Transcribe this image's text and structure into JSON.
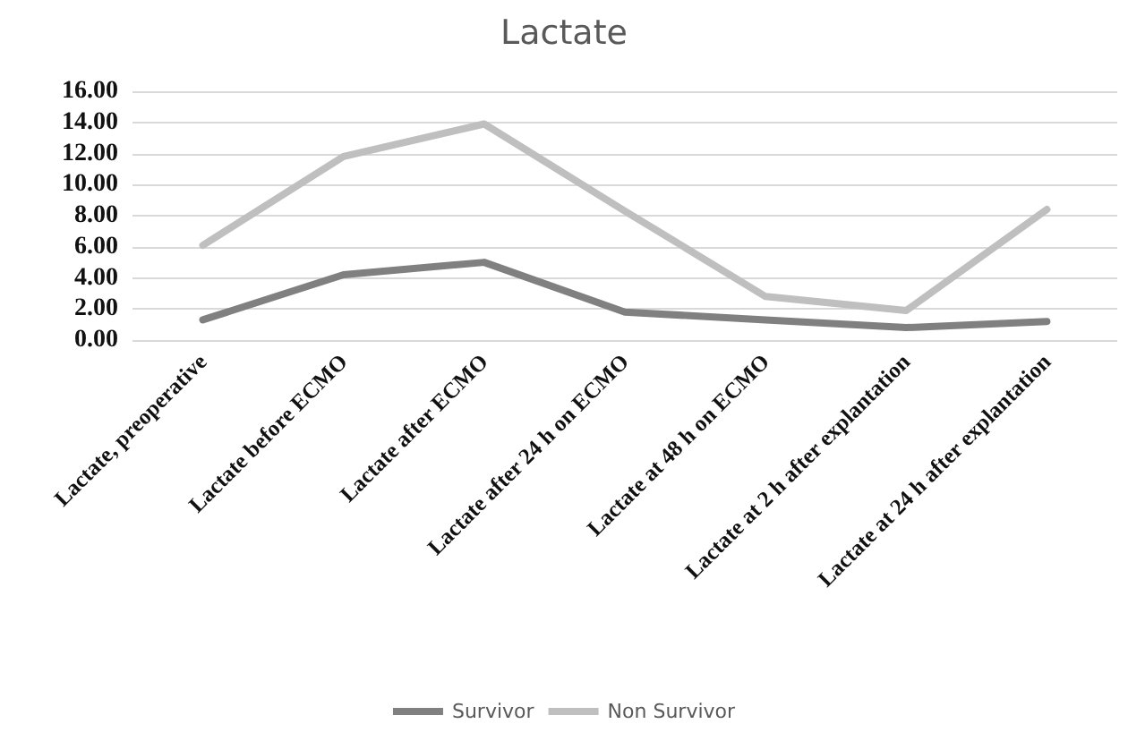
{
  "chart_data": {
    "type": "line",
    "title": "Lactate",
    "categories": [
      "Lactate, preoperative",
      "Lactate before ECMO",
      "Lactate after ECMO",
      "Lactate after 24 h on ECMO",
      "Lactate at 48 h on ECMO",
      "Lactate at 2 h after explantation",
      "Lactate at 24 h after explantation"
    ],
    "series": [
      {
        "name": "Survivor",
        "color": "#808080",
        "values": [
          1.3,
          4.2,
          5.0,
          1.8,
          1.3,
          0.8,
          1.2
        ]
      },
      {
        "name": "Non Survivor",
        "color": "#bfbfbf",
        "values": [
          6.1,
          11.8,
          13.9,
          8.3,
          2.8,
          1.9,
          8.4
        ]
      }
    ],
    "ylim": [
      0,
      16
    ],
    "yticks": [
      {
        "value": 0,
        "label": "0.00"
      },
      {
        "value": 2,
        "label": "2.00"
      },
      {
        "value": 4,
        "label": "4.00"
      },
      {
        "value": 6,
        "label": "6.00"
      },
      {
        "value": 8,
        "label": "8.00"
      },
      {
        "value": 10,
        "label": "10.00"
      },
      {
        "value": 12,
        "label": "12.00"
      },
      {
        "value": 14,
        "label": "14.00"
      },
      {
        "value": 16,
        "label": "16.00"
      }
    ],
    "grid": "y",
    "legend": "bottom",
    "marker": "none",
    "line_style": "solid"
  }
}
